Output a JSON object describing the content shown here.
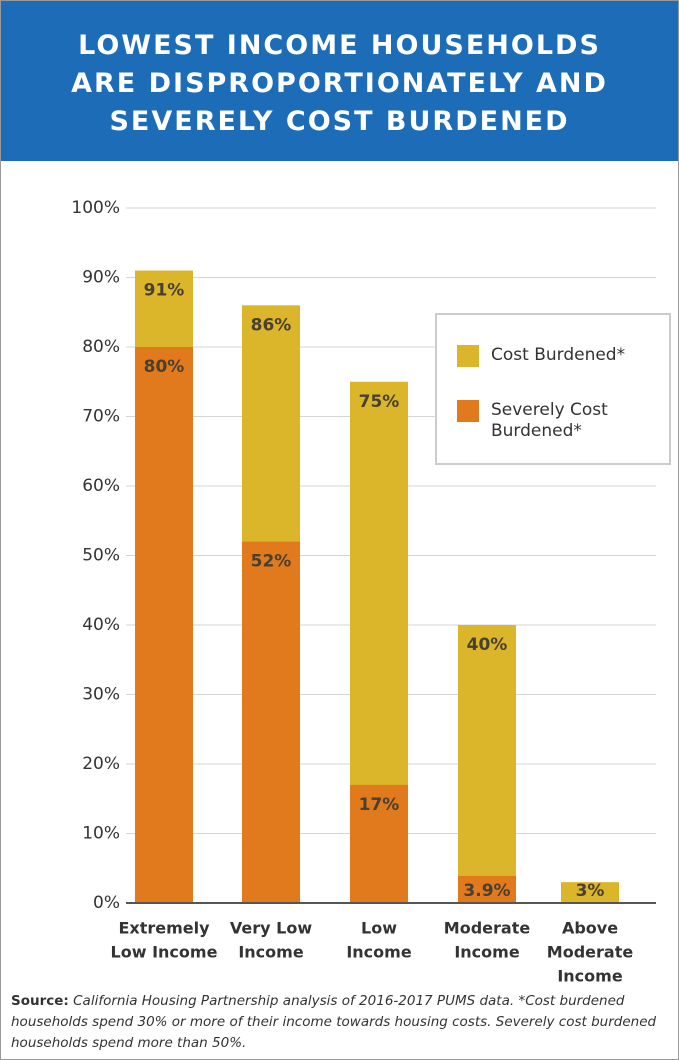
{
  "chart_data": {
    "type": "overlap-bar",
    "title": [
      "LOWEST INCOME HOUSEHOLDS",
      "ARE DISPROPORTIONATELY AND",
      "SEVERELY COST BURDENED"
    ],
    "categories": [
      [
        "Extremely",
        "Low Income"
      ],
      [
        "Very Low",
        "Income"
      ],
      [
        "Low",
        "Income"
      ],
      [
        "Moderate",
        "Income"
      ],
      [
        "Above",
        "Moderate",
        "Income"
      ]
    ],
    "series": [
      {
        "name": "Cost Burdened*",
        "color": "#dbb62a",
        "values": [
          91,
          86,
          75,
          40,
          3
        ],
        "value_labels": [
          "91%",
          "86%",
          "75%",
          "40%",
          "3%"
        ]
      },
      {
        "name": "Severely Cost Burdened*",
        "color": "#e07a1c",
        "values": [
          80,
          52,
          17,
          3.9,
          null
        ],
        "value_labels": [
          "80%",
          "52%",
          "17%",
          "3.9%",
          null
        ]
      }
    ],
    "ylim": [
      0,
      100
    ],
    "yticks": [
      {
        "value": 0,
        "label": "0%"
      },
      {
        "value": 10,
        "label": "10%"
      },
      {
        "value": 20,
        "label": "20%"
      },
      {
        "value": 30,
        "label": "30%"
      },
      {
        "value": 40,
        "label": "40%"
      },
      {
        "value": 50,
        "label": "50%"
      },
      {
        "value": 60,
        "label": "60%"
      },
      {
        "value": 70,
        "label": "70%"
      },
      {
        "value": 80,
        "label": "80%"
      },
      {
        "value": 90,
        "label": "90%"
      },
      {
        "value": 100,
        "label": "100%"
      }
    ],
    "grid": true,
    "legend": "upper right",
    "source_label": "Source:",
    "source_text": "California Housing Partnership analysis of 2016-2017 PUMS data. *Cost burdened households spend 30% or more of their income towards housing costs. Severely cost burdened households spend more than 50%."
  }
}
